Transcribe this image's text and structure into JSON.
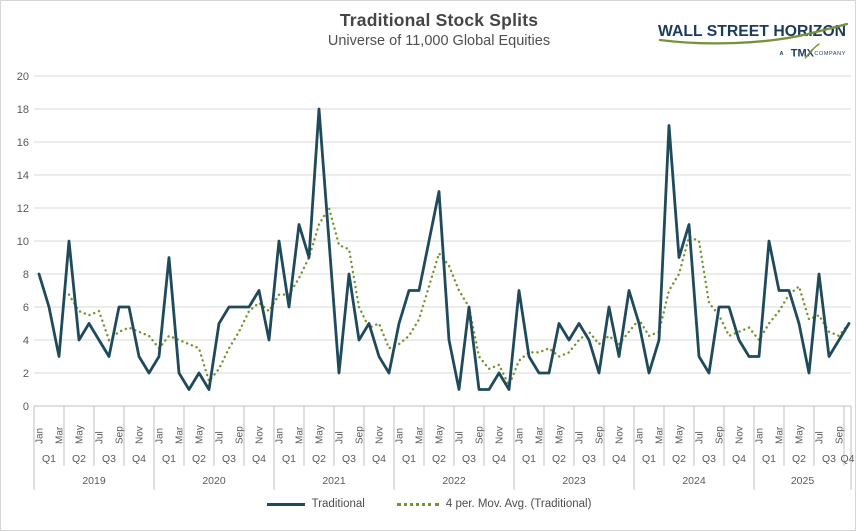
{
  "title": "Traditional Stock Splits",
  "subtitle": "Universe of 11,000 Global Equities",
  "logo": {
    "brand": "WALL STREET HORIZON",
    "tagline_a": "A",
    "tagline_tmx": "TMX",
    "tagline_company": "COMPANY"
  },
  "legend": {
    "items": [
      {
        "label": "Traditional"
      },
      {
        "label": "4 per. Mov. Avg. (Traditional)"
      }
    ]
  },
  "colors": {
    "traditional": "#1f4a5c",
    "moving_avg": "#74942f",
    "grid": "#d9d9d9",
    "axis_line": "#bfbfbf",
    "axis_text": "#595959",
    "logo_navy": "#1c3a5c",
    "logo_green": "#76933c"
  },
  "chart_data": {
    "type": "line",
    "title": "Traditional Stock Splits",
    "subtitle": "Universe of 11,000 Global Equities",
    "ylim": [
      0,
      20
    ],
    "ytick_step": 2,
    "grid": "horizontal",
    "legend_position": "bottom",
    "x_start": "Jan 2019",
    "x_end": "Oct 2025",
    "years": [
      "2019",
      "2020",
      "2021",
      "2022",
      "2023",
      "2024",
      "2025"
    ],
    "month_tick_labels": [
      "Jan",
      "Mar",
      "May",
      "Jul",
      "Sep",
      "Nov"
    ],
    "quarter_labels": [
      "Q1",
      "Q2",
      "Q3",
      "Q4"
    ],
    "series": [
      {
        "name": "Traditional",
        "style": "solid",
        "color": "#1f4a5c",
        "values_by_year": {
          "2019": [
            8,
            6,
            3,
            10,
            4,
            5,
            4,
            3,
            6,
            6,
            3,
            2
          ],
          "2020": [
            3,
            9,
            2,
            1,
            2,
            1,
            5,
            6,
            6,
            6,
            7,
            4
          ],
          "2021": [
            10,
            6,
            11,
            9,
            18,
            10,
            2,
            8,
            4,
            5,
            3,
            2
          ],
          "2022": [
            5,
            7,
            7,
            10,
            13,
            4,
            1,
            6,
            1,
            1,
            2,
            1
          ],
          "2023": [
            7,
            3,
            2,
            2,
            5,
            4,
            5,
            4,
            2,
            6,
            3,
            7
          ],
          "2024": [
            5,
            2,
            4,
            17,
            9,
            11,
            3,
            2,
            6,
            6,
            4,
            3
          ],
          "2025": [
            3,
            10,
            7,
            7,
            5,
            2,
            8,
            3,
            4,
            5
          ]
        }
      },
      {
        "name": "4 per. Mov. Avg. (Traditional)",
        "style": "dotted",
        "color": "#74942f",
        "derived_from": "Traditional",
        "window": 4
      }
    ]
  }
}
